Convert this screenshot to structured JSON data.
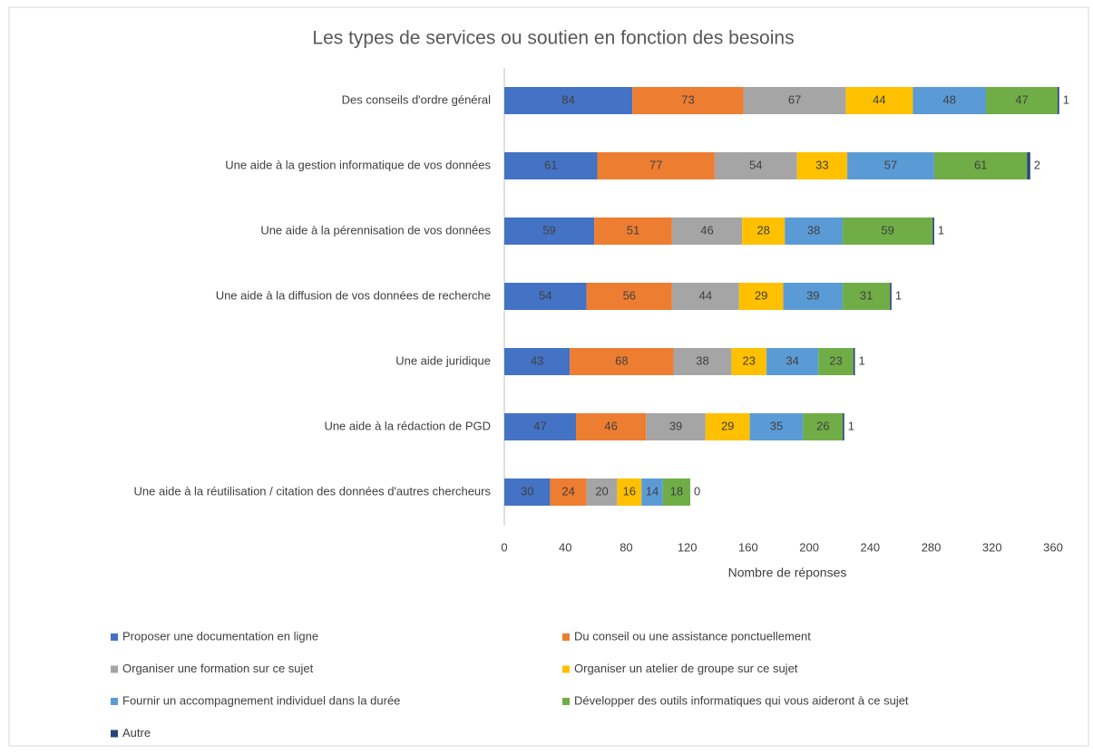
{
  "chart_data": {
    "type": "stacked-bar-horizontal",
    "title": "Les types de services ou soutien en fonction des besoins",
    "xlabel": "Nombre de réponses",
    "categories": [
      "Des conseils d'ordre général",
      "Une aide à la gestion informatique de vos données",
      "Une aide à la pérennisation de vos données",
      "Une aide à la diffusion de vos données de recherche",
      "Une aide juridique",
      "Une aide à la rédaction de PGD",
      "Une aide à la réutilisation / citation des données d'autres chercheurs"
    ],
    "series": [
      {
        "name": "Proposer une documentation en ligne",
        "color": "#4472c4",
        "values": [
          84,
          61,
          59,
          54,
          43,
          47,
          30
        ]
      },
      {
        "name": "Du conseil ou une assistance ponctuellement",
        "color": "#ed7d31",
        "values": [
          73,
          77,
          51,
          56,
          68,
          46,
          24
        ]
      },
      {
        "name": "Organiser une formation sur ce sujet",
        "color": "#a5a5a5",
        "values": [
          67,
          54,
          46,
          44,
          38,
          39,
          20
        ]
      },
      {
        "name": "Organiser un atelier de groupe sur ce sujet",
        "color": "#ffc000",
        "values": [
          44,
          33,
          28,
          29,
          23,
          29,
          16
        ]
      },
      {
        "name": "Fournir un accompagnement individuel dans la durée",
        "color": "#5b9bd5",
        "values": [
          48,
          57,
          38,
          39,
          34,
          35,
          14
        ]
      },
      {
        "name": "Développer des outils informatiques qui vous aideront à ce sujet",
        "color": "#70ad47",
        "values": [
          47,
          61,
          59,
          31,
          23,
          26,
          18
        ]
      },
      {
        "name": "Autre",
        "color": "#264478",
        "values": [
          1,
          2,
          1,
          1,
          1,
          1,
          0
        ]
      }
    ],
    "xlim": [
      0,
      360
    ],
    "xticks": [
      0,
      40,
      80,
      120,
      160,
      200,
      240,
      280,
      320,
      360
    ],
    "grid": false,
    "legend": "bottom"
  }
}
